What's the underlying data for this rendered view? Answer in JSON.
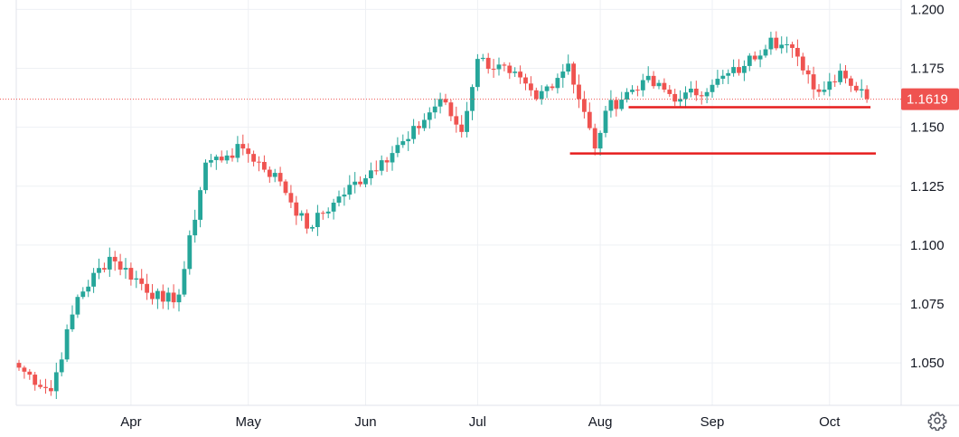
{
  "chart_data": {
    "type": "candlestick",
    "title": "",
    "xlabel": "",
    "ylabel": "",
    "x_tick_labels": [
      "Apr",
      "May",
      "Jun",
      "Jul",
      "Aug",
      "Sep",
      "Oct"
    ],
    "y_tick_labels": [
      "1.200",
      "1.175",
      "1.150",
      "1.125",
      "1.100",
      "1.075",
      "1.050"
    ],
    "ylim": [
      1.032,
      1.204
    ],
    "grid": true,
    "last_price": 1.1619,
    "last_price_label": "1.1619",
    "support_lines": [
      {
        "value": 1.1585,
        "start": "Aug 11",
        "end": "Oct 10"
      },
      {
        "value": 1.1389,
        "start": "Jul 25",
        "end": "Oct 13"
      }
    ],
    "key_points": [
      {
        "date": "Mar 3",
        "close": 1.048
      },
      {
        "date": "Mar 11",
        "close": 1.038
      },
      {
        "date": "Mar 18",
        "close": 1.078
      },
      {
        "date": "Mar 26",
        "close": 1.095
      },
      {
        "date": "Apr 9",
        "close": 1.076
      },
      {
        "date": "Apr 14",
        "close": 1.079
      },
      {
        "date": "Apr 21",
        "close": 1.135
      },
      {
        "date": "Apr 25",
        "close": 1.138
      },
      {
        "date": "Apr 30",
        "close": 1.141
      },
      {
        "date": "May 9",
        "close": 1.127
      },
      {
        "date": "May 16",
        "close": 1.107
      },
      {
        "date": "May 23",
        "close": 1.118
      },
      {
        "date": "Jun 5",
        "close": 1.136
      },
      {
        "date": "Jun 12",
        "close": 1.145
      },
      {
        "date": "Jun 20",
        "close": 1.162
      },
      {
        "date": "Jun 26",
        "close": 1.148
      },
      {
        "date": "Jul 1",
        "close": 1.179
      },
      {
        "date": "Jul 9",
        "close": 1.173
      },
      {
        "date": "Jul 16",
        "close": 1.162
      },
      {
        "date": "Jul 24",
        "close": 1.177
      },
      {
        "date": "Jul 31",
        "close": 1.141
      },
      {
        "date": "Aug 4",
        "close": 1.157
      },
      {
        "date": "Aug 13",
        "close": 1.17
      },
      {
        "date": "Aug 22",
        "close": 1.162
      },
      {
        "date": "Sep 1",
        "close": 1.168
      },
      {
        "date": "Sep 9",
        "close": 1.176
      },
      {
        "date": "Sep 16",
        "close": 1.188
      },
      {
        "date": "Sep 23",
        "close": 1.18
      },
      {
        "date": "Sep 29",
        "close": 1.165
      },
      {
        "date": "Oct 3",
        "close": 1.174
      },
      {
        "date": "Oct 10",
        "close": 1.162
      }
    ]
  },
  "ui": {
    "settings_icon": "gear-icon",
    "colors": {
      "up": "#26a69a",
      "down": "#ef5350",
      "support_line": "#e61e1e",
      "grid": "#eef0f4",
      "price_line": "#ef5350"
    }
  }
}
